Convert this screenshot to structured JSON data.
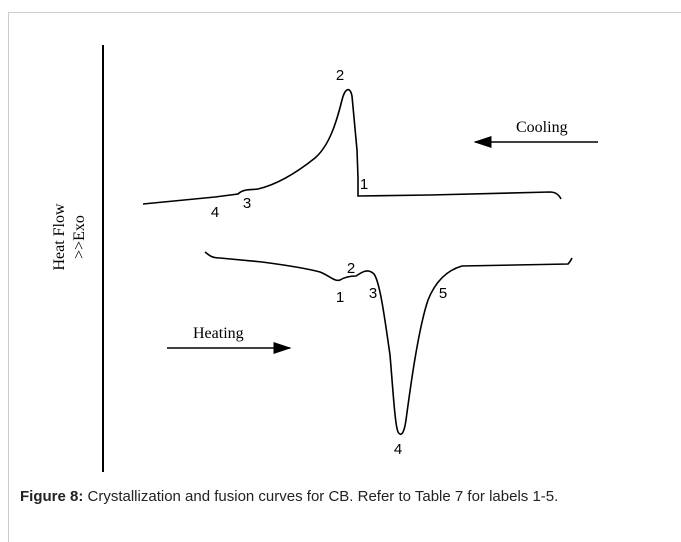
{
  "figure": {
    "y_axis_label": [
      "Heat Flow",
      ">>Exo"
    ],
    "cooling": {
      "label": "Cooling",
      "points": [
        "1",
        "2",
        "3",
        "4"
      ]
    },
    "heating": {
      "label": "Heating",
      "points": [
        "1",
        "2",
        "3",
        "4",
        "5"
      ]
    }
  },
  "caption": {
    "label": "Figure 8:",
    "text": " Crystallization and fusion curves for CB. Refer to Table 7 for labels 1-5."
  }
}
